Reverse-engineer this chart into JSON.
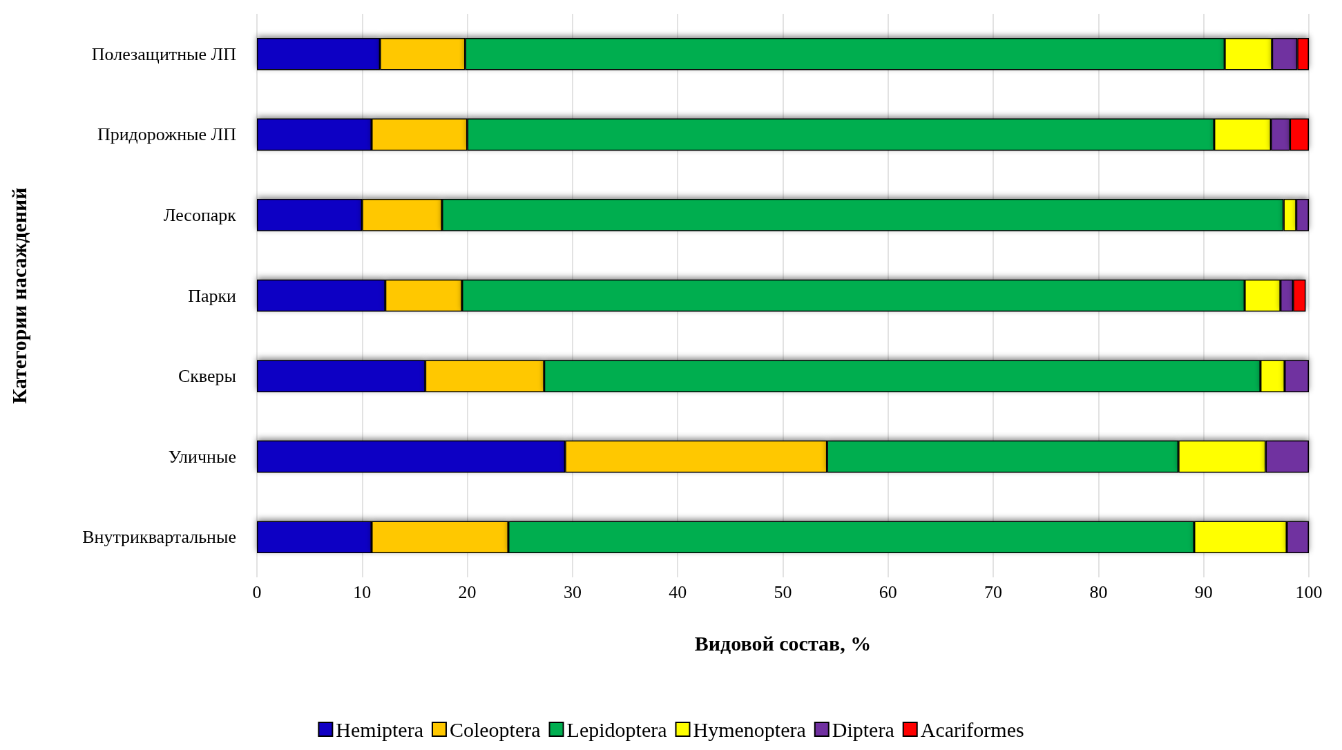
{
  "chart_data": {
    "type": "bar",
    "orientation": "horizontal",
    "stacked": true,
    "xlabel": "Видовой состав, %",
    "ylabel": "Категории насаждений",
    "categories": [
      "Полезащитные ЛП",
      "Придорожные ЛП",
      "Лесопарк",
      "Парки",
      "Скверы",
      "Уличные",
      "Внутриквартальные"
    ],
    "series": [
      {
        "name": "Hemiptera",
        "color": "#1100c4",
        "values": [
          11.7,
          10.9,
          10.0,
          12.2,
          16.0,
          29.3,
          10.9
        ]
      },
      {
        "name": "Coleoptera",
        "color": "#ffc800",
        "values": [
          8.1,
          9.1,
          7.6,
          7.3,
          11.3,
          24.9,
          13.0
        ]
      },
      {
        "name": "Lepidoptera",
        "color": "#00ae50",
        "values": [
          72.2,
          71.0,
          80.0,
          74.4,
          68.1,
          33.4,
          65.2
        ]
      },
      {
        "name": "Hymenoptera",
        "color": "#ffff00",
        "values": [
          4.5,
          5.4,
          1.2,
          3.4,
          2.3,
          8.3,
          8.8
        ]
      },
      {
        "name": "Diptera",
        "color": "#7030a0",
        "values": [
          2.4,
          1.8,
          1.2,
          1.2,
          2.3,
          4.1,
          2.1
        ]
      },
      {
        "name": "Acariformes",
        "color": "#ff0000",
        "values": [
          1.1,
          1.8,
          null,
          1.2,
          null,
          null,
          null
        ]
      }
    ],
    "xlim": [
      0,
      100
    ],
    "xticks": [
      0,
      10,
      20,
      30,
      40,
      50,
      60,
      70,
      80,
      90,
      100
    ],
    "grid": "x",
    "legend": "bottom"
  }
}
